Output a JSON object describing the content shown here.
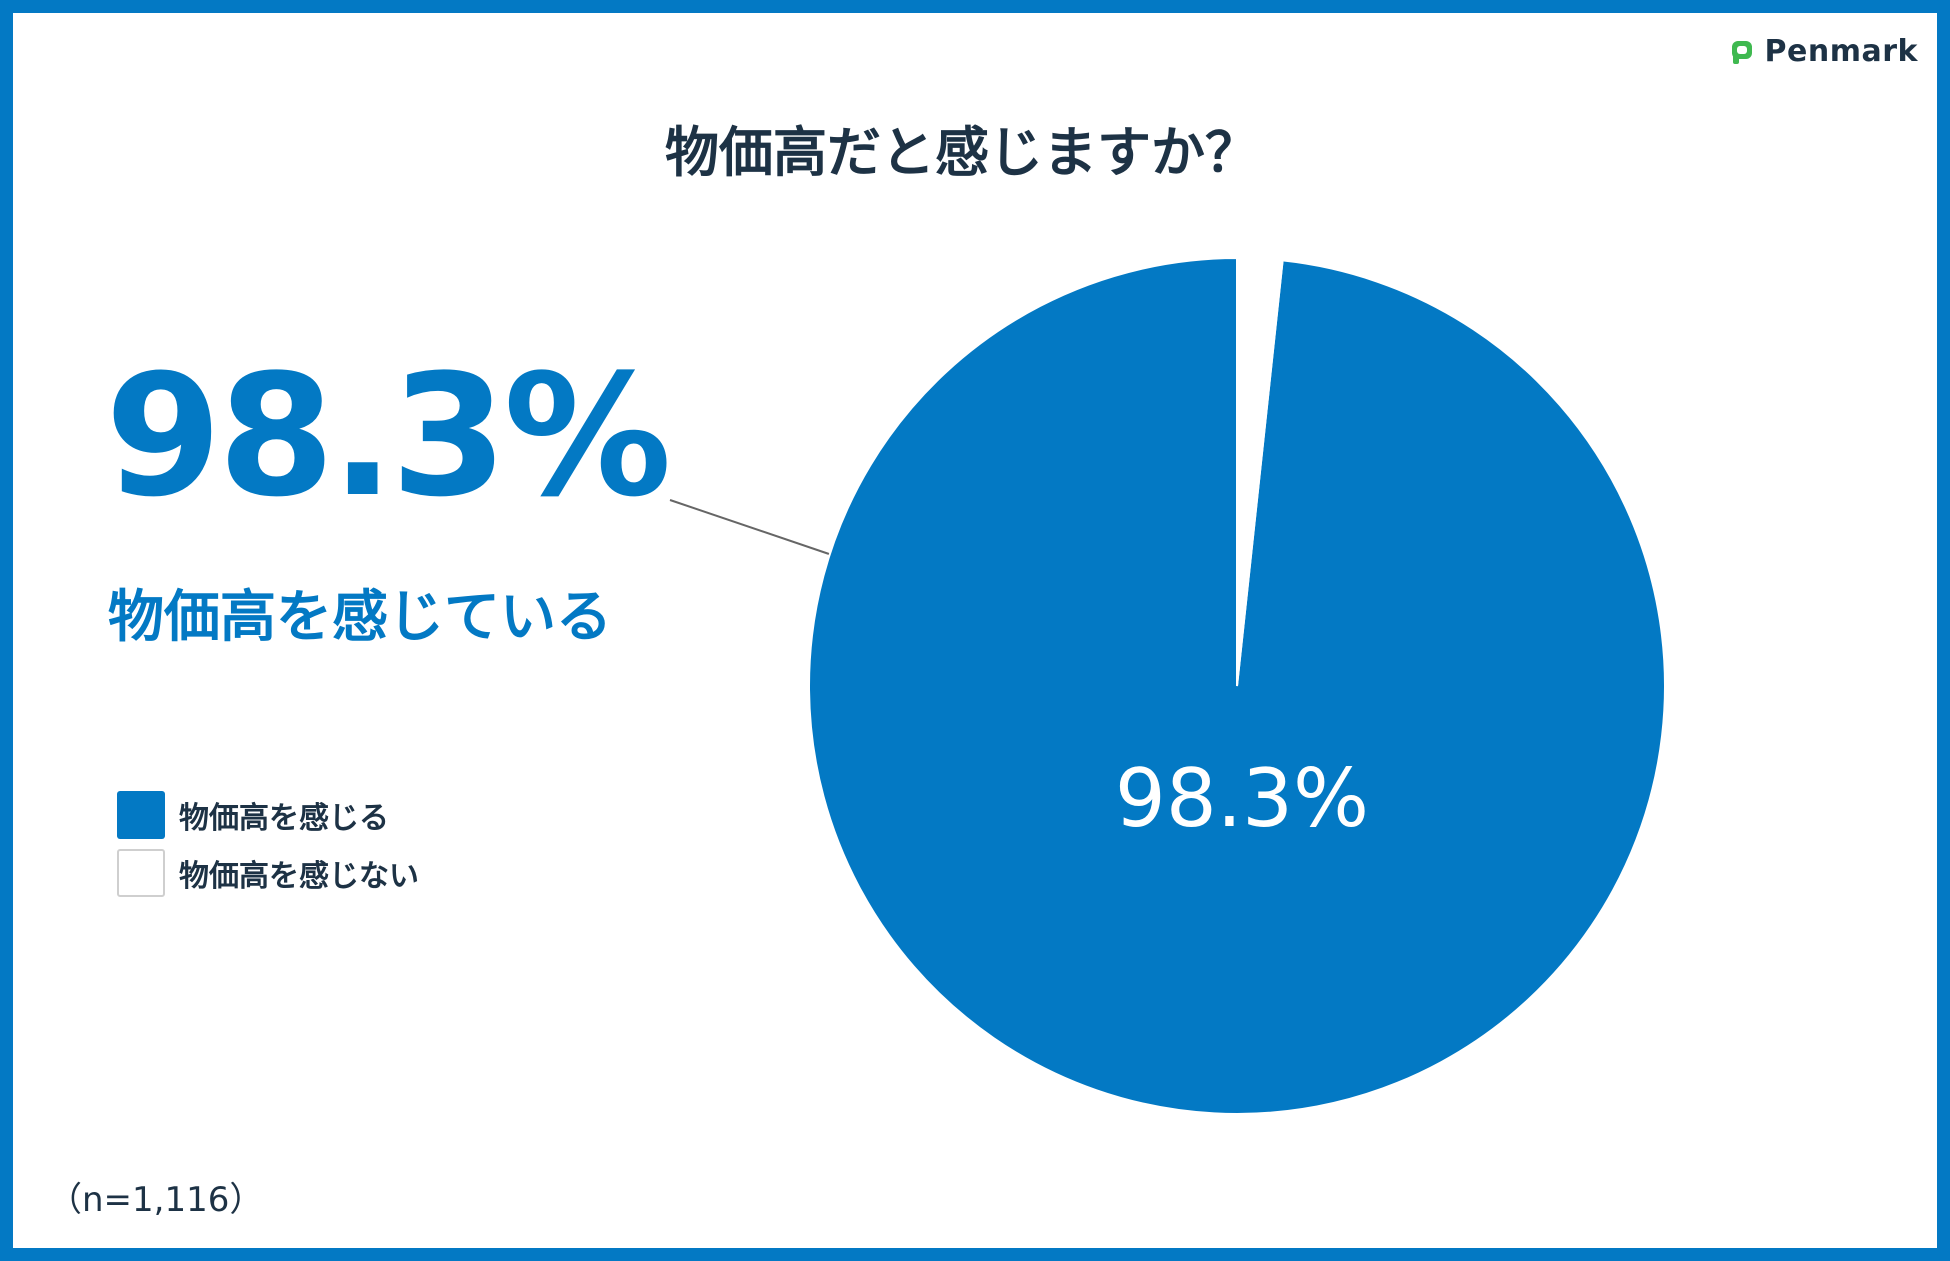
{
  "brand": {
    "name": "Penmark",
    "color": "#3fb950"
  },
  "title": "物価高だと感じますか？",
  "headline": {
    "value": "98.3%",
    "label": "物価高を感じている"
  },
  "sample_note": "（n=1,116）",
  "colors": {
    "accent": "#0379c4",
    "text": "#1d3245",
    "white": "#ffffff"
  },
  "chart_data": {
    "type": "pie",
    "title": "物価高だと感じますか？",
    "categories": [
      "物価高を感じる",
      "物価高を感じない"
    ],
    "values": [
      98.3,
      1.7
    ],
    "unit": "%",
    "slice_labels": [
      "98.3%",
      ""
    ],
    "colors": [
      "#0379c4",
      "#ffffff"
    ],
    "legend_position": "left",
    "start_angle": "12 o'clock",
    "direction": "counter-clockwise"
  }
}
